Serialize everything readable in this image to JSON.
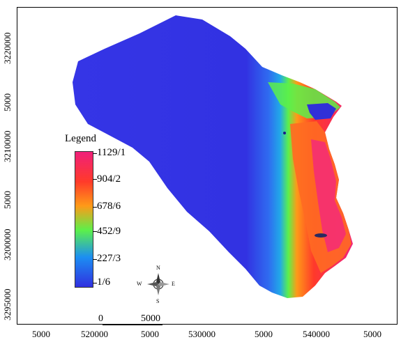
{
  "legend": {
    "title": "Legend",
    "labels": [
      "1129/1",
      "904/2",
      "678/6",
      "452/9",
      "227/3",
      "1/6"
    ],
    "colors": [
      "#f0207a",
      "#ff3a2a",
      "#ff9a18",
      "#5cf04a",
      "#1c8ef2",
      "#3030e0"
    ]
  },
  "axes": {
    "y_labels": [
      "3220000",
      "5000",
      "3210000",
      "5000",
      "3200000",
      "3295000"
    ],
    "x_labels": [
      "5000",
      "520000",
      "5000",
      "530000",
      "5000",
      "540000",
      "5000"
    ]
  },
  "compass": {
    "n": "N",
    "s": "S",
    "e": "E",
    "w": "W"
  },
  "scale": {
    "start": "0",
    "end": "5000"
  },
  "colors": {
    "low": "#3434e6",
    "mid_low": "#2a8ef0",
    "mid": "#5ef04c",
    "mid_high": "#ff9b18",
    "high": "#ff3030",
    "peak": "#f3207a",
    "frame": "#000000"
  }
}
